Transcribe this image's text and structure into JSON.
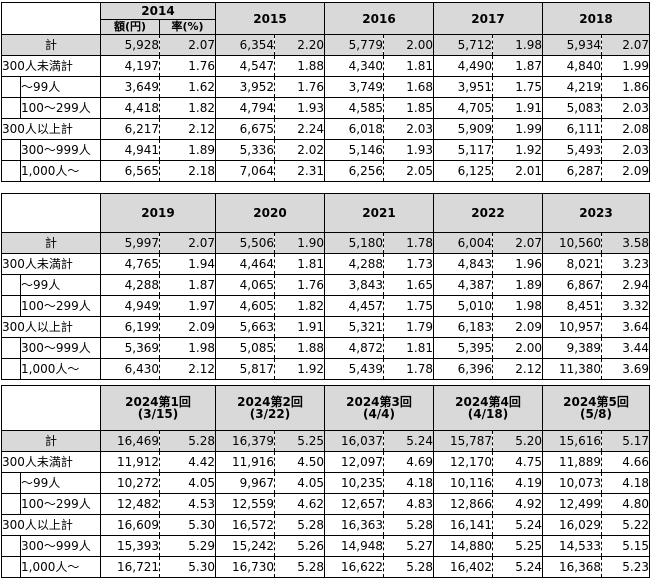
{
  "table1": {
    "years": [
      "2014",
      "2015",
      "2016",
      "2017",
      "2018"
    ],
    "sub_amount": "額(円)",
    "sub_rate": "率(%)",
    "rows": [
      {
        "label": "計",
        "v": [
          [
            "5,928",
            "2.07"
          ],
          [
            "6,354",
            "2.20"
          ],
          [
            "5,779",
            "2.00"
          ],
          [
            "5,712",
            "1.98"
          ],
          [
            "5,934",
            "2.07"
          ]
        ]
      },
      {
        "label": "300人未満計",
        "v": [
          [
            "4,197",
            "1.76"
          ],
          [
            "4,547",
            "1.88"
          ],
          [
            "4,340",
            "1.81"
          ],
          [
            "4,490",
            "1.87"
          ],
          [
            "4,840",
            "1.99"
          ]
        ]
      },
      {
        "label": "～99人",
        "v": [
          [
            "3,649",
            "1.62"
          ],
          [
            "3,952",
            "1.76"
          ],
          [
            "3,749",
            "1.68"
          ],
          [
            "3,951",
            "1.75"
          ],
          [
            "4,219",
            "1.86"
          ]
        ]
      },
      {
        "label": "100～299人",
        "v": [
          [
            "4,418",
            "1.82"
          ],
          [
            "4,794",
            "1.93"
          ],
          [
            "4,585",
            "1.85"
          ],
          [
            "4,705",
            "1.91"
          ],
          [
            "5,083",
            "2.03"
          ]
        ]
      },
      {
        "label": "300人以上計",
        "v": [
          [
            "6,217",
            "2.12"
          ],
          [
            "6,675",
            "2.24"
          ],
          [
            "6,018",
            "2.03"
          ],
          [
            "5,909",
            "1.99"
          ],
          [
            "6,111",
            "2.08"
          ]
        ]
      },
      {
        "label": "300～999人",
        "v": [
          [
            "4,941",
            "1.89"
          ],
          [
            "5,336",
            "2.02"
          ],
          [
            "5,146",
            "1.93"
          ],
          [
            "5,117",
            "1.92"
          ],
          [
            "5,493",
            "2.03"
          ]
        ]
      },
      {
        "label": "1,000人～",
        "v": [
          [
            "6,565",
            "2.18"
          ],
          [
            "7,064",
            "2.31"
          ],
          [
            "6,256",
            "2.05"
          ],
          [
            "6,125",
            "2.01"
          ],
          [
            "6,287",
            "2.09"
          ]
        ]
      }
    ]
  },
  "table2": {
    "years": [
      "2019",
      "2020",
      "2021",
      "2022",
      "2023"
    ],
    "rows": [
      {
        "label": "計",
        "v": [
          [
            "5,997",
            "2.07"
          ],
          [
            "5,506",
            "1.90"
          ],
          [
            "5,180",
            "1.78"
          ],
          [
            "6,004",
            "2.07"
          ],
          [
            "10,560",
            "3.58"
          ]
        ]
      },
      {
        "label": "300人未満計",
        "v": [
          [
            "4,765",
            "1.94"
          ],
          [
            "4,464",
            "1.81"
          ],
          [
            "4,288",
            "1.73"
          ],
          [
            "4,843",
            "1.96"
          ],
          [
            "8,021",
            "3.23"
          ]
        ]
      },
      {
        "label": "～99人",
        "v": [
          [
            "4,288",
            "1.87"
          ],
          [
            "4,065",
            "1.76"
          ],
          [
            "3,843",
            "1.65"
          ],
          [
            "4,387",
            "1.89"
          ],
          [
            "6,867",
            "2.94"
          ]
        ]
      },
      {
        "label": "100～299人",
        "v": [
          [
            "4,949",
            "1.97"
          ],
          [
            "4,605",
            "1.82"
          ],
          [
            "4,457",
            "1.75"
          ],
          [
            "5,010",
            "1.98"
          ],
          [
            "8,451",
            "3.32"
          ]
        ]
      },
      {
        "label": "300人以上計",
        "v": [
          [
            "6,199",
            "2.09"
          ],
          [
            "5,663",
            "1.91"
          ],
          [
            "5,321",
            "1.79"
          ],
          [
            "6,183",
            "2.09"
          ],
          [
            "10,957",
            "3.64"
          ]
        ]
      },
      {
        "label": "300～999人",
        "v": [
          [
            "5,369",
            "1.98"
          ],
          [
            "5,085",
            "1.88"
          ],
          [
            "4,872",
            "1.81"
          ],
          [
            "5,395",
            "2.00"
          ],
          [
            "9,389",
            "3.44"
          ]
        ]
      },
      {
        "label": "1,000人～",
        "v": [
          [
            "6,430",
            "2.12"
          ],
          [
            "5,817",
            "1.92"
          ],
          [
            "5,439",
            "1.78"
          ],
          [
            "6,396",
            "2.12"
          ],
          [
            "11,380",
            "3.69"
          ]
        ]
      }
    ]
  },
  "table3": {
    "headers": [
      [
        "2024第1回",
        "(3/15)"
      ],
      [
        "2024第2回",
        "(3/22)"
      ],
      [
        "2024第3回",
        "(4/4)"
      ],
      [
        "2024第4回",
        "(4/18)"
      ],
      [
        "2024第5回",
        "(5/8)"
      ]
    ],
    "rows": [
      {
        "label": "計",
        "v": [
          [
            "16,469",
            "5.28"
          ],
          [
            "16,379",
            "5.25"
          ],
          [
            "16,037",
            "5.24"
          ],
          [
            "15,787",
            "5.20"
          ],
          [
            "15,616",
            "5.17"
          ]
        ]
      },
      {
        "label": "300人未満計",
        "v": [
          [
            "11,912",
            "4.42"
          ],
          [
            "11,916",
            "4.50"
          ],
          [
            "12,097",
            "4.69"
          ],
          [
            "12,170",
            "4.75"
          ],
          [
            "11,889",
            "4.66"
          ]
        ]
      },
      {
        "label": "～99人",
        "v": [
          [
            "10,272",
            "4.05"
          ],
          [
            "9,967",
            "4.05"
          ],
          [
            "10,235",
            "4.18"
          ],
          [
            "10,116",
            "4.19"
          ],
          [
            "10,073",
            "4.18"
          ]
        ]
      },
      {
        "label": "100～299人",
        "v": [
          [
            "12,482",
            "4.53"
          ],
          [
            "12,559",
            "4.62"
          ],
          [
            "12,657",
            "4.83"
          ],
          [
            "12,866",
            "4.92"
          ],
          [
            "12,499",
            "4.80"
          ]
        ]
      },
      {
        "label": "300人以上計",
        "v": [
          [
            "16,609",
            "5.30"
          ],
          [
            "16,572",
            "5.28"
          ],
          [
            "16,363",
            "5.28"
          ],
          [
            "16,141",
            "5.24"
          ],
          [
            "16,029",
            "5.22"
          ]
        ]
      },
      {
        "label": "300～999人",
        "v": [
          [
            "15,393",
            "5.29"
          ],
          [
            "15,242",
            "5.26"
          ],
          [
            "14,948",
            "5.27"
          ],
          [
            "14,880",
            "5.25"
          ],
          [
            "14,533",
            "5.15"
          ]
        ]
      },
      {
        "label": "1,000人～",
        "v": [
          [
            "16,721",
            "5.30"
          ],
          [
            "16,730",
            "5.28"
          ],
          [
            "16,622",
            "5.28"
          ],
          [
            "16,402",
            "5.24"
          ],
          [
            "16,368",
            "5.23"
          ]
        ]
      }
    ]
  }
}
